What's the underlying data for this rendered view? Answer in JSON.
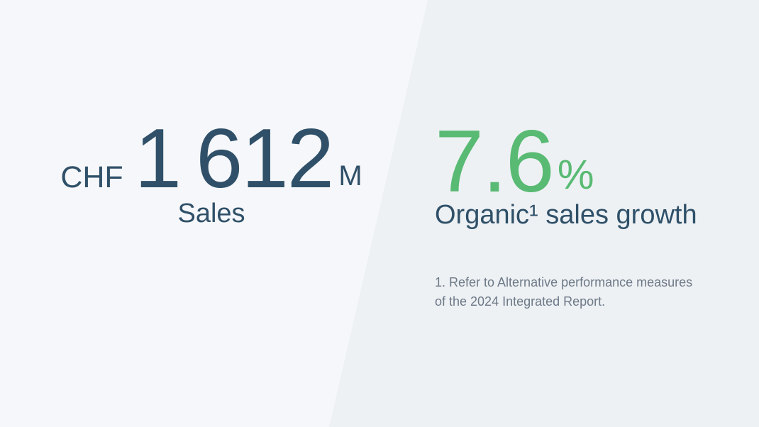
{
  "colors": {
    "left_background": "#F6F7FA",
    "right_background": "#EDF1F4",
    "primary_text": "#2F5068",
    "accent_green": "#59BA73",
    "footnote_text": "#6E7987"
  },
  "left_stat": {
    "currency": "CHF",
    "value": "1 612",
    "unit": "M",
    "label": "Sales"
  },
  "right_stat": {
    "value": "7.6",
    "unit": "%",
    "label": "Organic¹ sales growth",
    "footnote": {
      "line1": "1. Refer to Alternative performance measures",
      "line2": "of the 2024 Integrated Report."
    }
  }
}
